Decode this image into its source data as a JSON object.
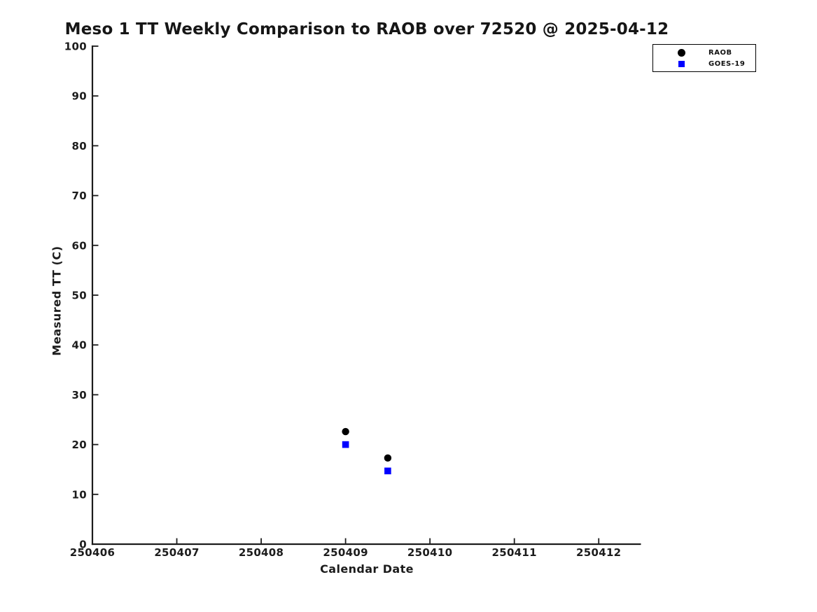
{
  "figure": {
    "background_color": "#ffffff",
    "axis_color": "#1c1c1c",
    "text_color": "#1c1c1c"
  },
  "chart_data": {
    "type": "scatter",
    "title": "Meso 1 TT Weekly Comparison to RAOB over 72520 @ 2025-04-12",
    "xlabel": "Calendar Date",
    "ylabel": "Measured TT (C)",
    "xlim": [
      250406,
      250412.5
    ],
    "ylim": [
      0,
      100
    ],
    "x_ticks": [
      250406,
      250407,
      250408,
      250409,
      250410,
      250411,
      250412
    ],
    "y_ticks": [
      0,
      10,
      20,
      30,
      40,
      50,
      60,
      70,
      80,
      90,
      100
    ],
    "grid": false,
    "legend_position": "top-right",
    "series": [
      {
        "name": "RAOB",
        "marker": "circle",
        "color": "#000000",
        "points": [
          {
            "x": 250409.0,
            "y": 22.6
          },
          {
            "x": 250409.5,
            "y": 17.3
          }
        ]
      },
      {
        "name": "GOES-19",
        "marker": "square",
        "color": "#0000ff",
        "points": [
          {
            "x": 250409.0,
            "y": 20.0
          },
          {
            "x": 250409.5,
            "y": 14.7
          }
        ]
      }
    ]
  }
}
